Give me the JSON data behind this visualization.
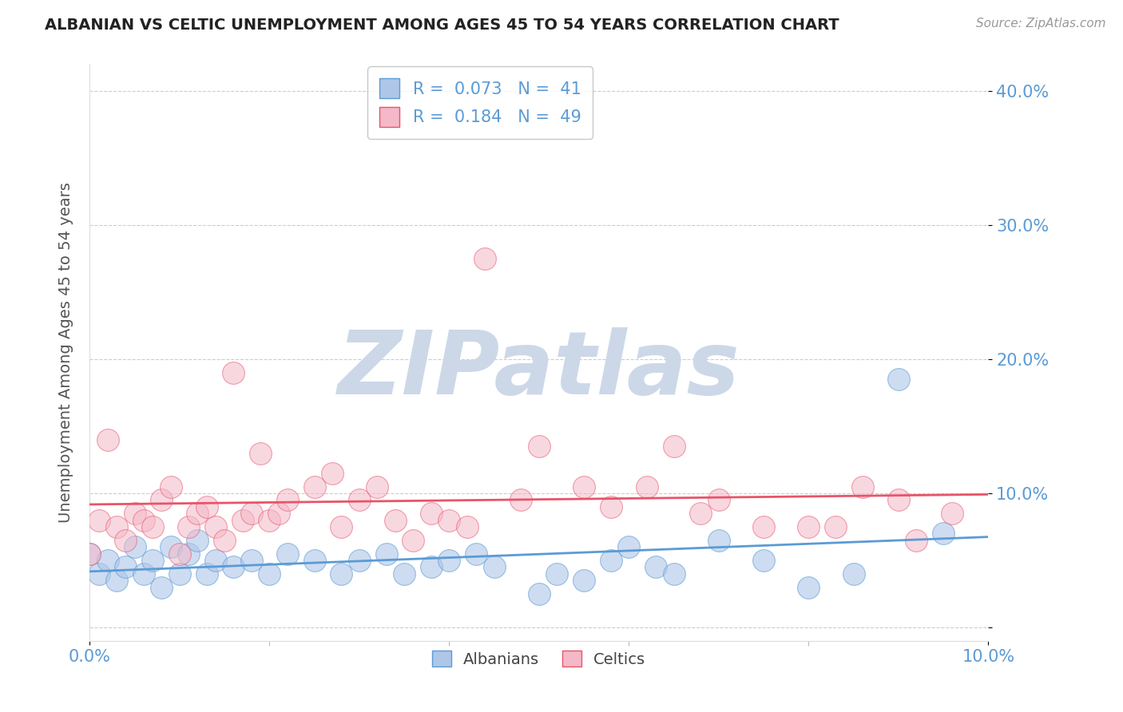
{
  "title": "ALBANIAN VS CELTIC UNEMPLOYMENT AMONG AGES 45 TO 54 YEARS CORRELATION CHART",
  "source": "Source: ZipAtlas.com",
  "ylabel": "Unemployment Among Ages 45 to 54 years",
  "xlim": [
    0.0,
    0.1
  ],
  "ylim": [
    -0.01,
    0.42
  ],
  "yticks": [
    0.0,
    0.1,
    0.2,
    0.3,
    0.4
  ],
  "ytick_labels": [
    "",
    "10.0%",
    "20.0%",
    "30.0%",
    "40.0%"
  ],
  "xtick_labels_show": [
    "0.0%",
    "10.0%"
  ],
  "albanian_color": "#aec6e8",
  "celtic_color": "#f4b8c8",
  "albanian_edge_color": "#5b9bd5",
  "celtic_edge_color": "#e8546a",
  "albanian_line_color": "#5b9bd5",
  "celtic_line_color": "#e8546a",
  "tick_label_color": "#5b9bd5",
  "albanian_R": 0.073,
  "albanian_N": 41,
  "celtic_R": 0.184,
  "celtic_N": 49,
  "watermark": "ZIPatlas",
  "watermark_color": "#ccd8e8",
  "background_color": "#ffffff",
  "albanian_x": [
    0.0,
    0.001,
    0.002,
    0.003,
    0.004,
    0.005,
    0.006,
    0.007,
    0.008,
    0.009,
    0.01,
    0.011,
    0.012,
    0.013,
    0.014,
    0.016,
    0.018,
    0.02,
    0.022,
    0.025,
    0.028,
    0.03,
    0.033,
    0.035,
    0.038,
    0.04,
    0.043,
    0.045,
    0.05,
    0.052,
    0.055,
    0.058,
    0.06,
    0.063,
    0.065,
    0.07,
    0.075,
    0.08,
    0.085,
    0.09,
    0.095
  ],
  "albanian_y": [
    0.055,
    0.04,
    0.05,
    0.035,
    0.045,
    0.06,
    0.04,
    0.05,
    0.03,
    0.06,
    0.04,
    0.055,
    0.065,
    0.04,
    0.05,
    0.045,
    0.05,
    0.04,
    0.055,
    0.05,
    0.04,
    0.05,
    0.055,
    0.04,
    0.045,
    0.05,
    0.055,
    0.045,
    0.025,
    0.04,
    0.035,
    0.05,
    0.06,
    0.045,
    0.04,
    0.065,
    0.05,
    0.03,
    0.04,
    0.185,
    0.07
  ],
  "celtic_x": [
    0.0,
    0.001,
    0.002,
    0.003,
    0.004,
    0.005,
    0.006,
    0.007,
    0.008,
    0.009,
    0.01,
    0.011,
    0.012,
    0.013,
    0.014,
    0.015,
    0.016,
    0.017,
    0.018,
    0.019,
    0.02,
    0.021,
    0.022,
    0.025,
    0.027,
    0.028,
    0.03,
    0.032,
    0.034,
    0.036,
    0.038,
    0.04,
    0.042,
    0.044,
    0.048,
    0.05,
    0.055,
    0.058,
    0.062,
    0.065,
    0.068,
    0.07,
    0.075,
    0.08,
    0.083,
    0.086,
    0.09,
    0.092,
    0.096
  ],
  "celtic_y": [
    0.055,
    0.08,
    0.14,
    0.075,
    0.065,
    0.085,
    0.08,
    0.075,
    0.095,
    0.105,
    0.055,
    0.075,
    0.085,
    0.09,
    0.075,
    0.065,
    0.19,
    0.08,
    0.085,
    0.13,
    0.08,
    0.085,
    0.095,
    0.105,
    0.115,
    0.075,
    0.095,
    0.105,
    0.08,
    0.065,
    0.085,
    0.08,
    0.075,
    0.275,
    0.095,
    0.135,
    0.105,
    0.09,
    0.105,
    0.135,
    0.085,
    0.095,
    0.075,
    0.075,
    0.075,
    0.105,
    0.095,
    0.065,
    0.085
  ]
}
